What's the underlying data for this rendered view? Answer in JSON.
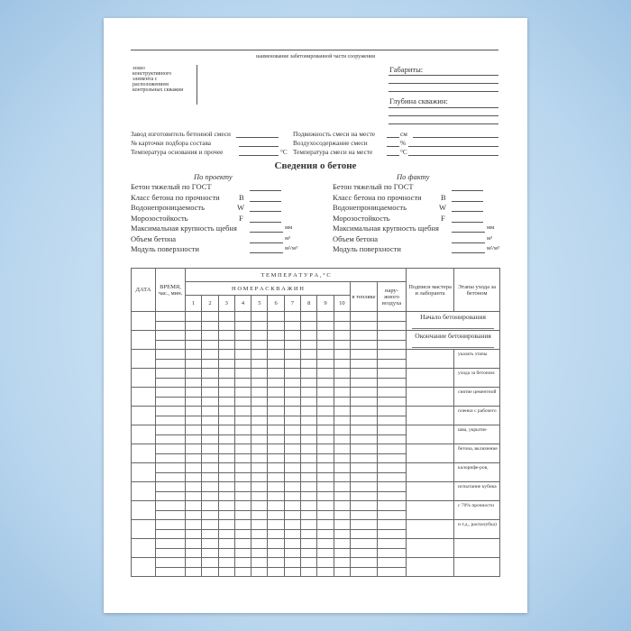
{
  "header": {
    "structure_caption": "наименование забетонированной части сооружения",
    "sketch_label": [
      "эскиз",
      "конструктивного",
      "элемента с",
      "расположением",
      "контрольных скважин"
    ],
    "dimensions": "Габариты:",
    "well_depth": "Глубина скважин:"
  },
  "mix": {
    "left": [
      "Завод изготовитель бетонной смеси",
      "№ карточки подбора состава",
      "Температура основания и прочее"
    ],
    "left_units": [
      "",
      "",
      "°С"
    ],
    "right": [
      "Подвижность смеси на месте",
      "Воздухосодержание смеси",
      "Температура смеси на месте"
    ],
    "right_units": [
      "см",
      "%",
      "°С"
    ]
  },
  "concept": {
    "title": "Сведения о бетоне",
    "project": "По проекту",
    "fact": "По факту",
    "rows": [
      {
        "label": "Бетон тяжелый по ГОСТ",
        "prefix": "",
        "unit": ""
      },
      {
        "label": "Класс бетона по прочности",
        "prefix": "B",
        "unit": ""
      },
      {
        "label": "Водонепроницаемость",
        "prefix": "W",
        "unit": ""
      },
      {
        "label": "Морозостойкость",
        "prefix": "F",
        "unit": ""
      },
      {
        "label": "Максимальная крупность щебня",
        "prefix": "",
        "unit": "мм"
      },
      {
        "label": "Объем бетона",
        "prefix": "",
        "unit": "м³"
      },
      {
        "label": "Модуль поверхности",
        "prefix": "",
        "unit": "м²/м³"
      }
    ]
  },
  "table": {
    "date": "ДАТА",
    "time": "ВРЕМЯ, час., мин.",
    "temperature": "Т Е М П Е Р А Т У Р А ,  ° С",
    "wells": "Н О М Е Р А  С К В А Ж И Н",
    "well_numbers": [
      "1",
      "2",
      "3",
      "4",
      "5",
      "6",
      "7",
      "8",
      "9",
      "10"
    ],
    "greenhouse": "в тепляке",
    "outdoor": "нару-жного воздуха",
    "signatures": "Подписи мастера и лаборанта",
    "stages": "Этапы ухода за бетоном",
    "start": "Начало бетонирования",
    "end": "Окончание бетонирования",
    "notes": [
      "указать этапы",
      "ухода за бетоном:",
      "снятие цементной",
      "пленки с рабочего",
      "шва, укрытие",
      "бетона, включение",
      "калорифе-ров,",
      "испытание кубика",
      "с 70% прочности",
      "и т.д., распалубка)",
      "",
      ""
    ]
  }
}
